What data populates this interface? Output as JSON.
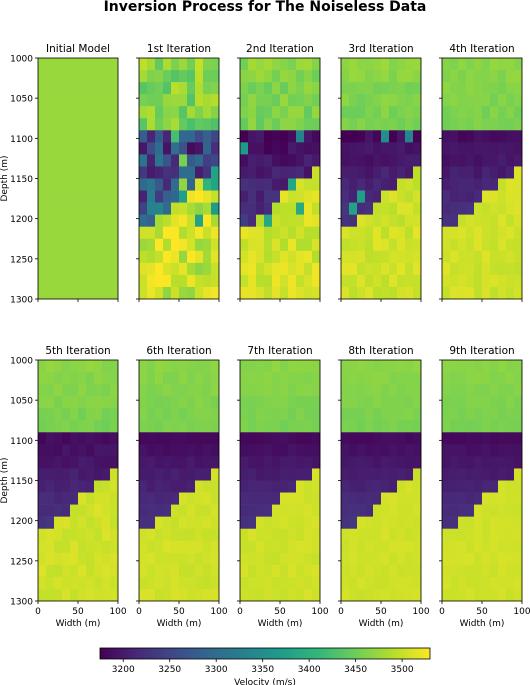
{
  "title": "Inversion Process for The Noiseless Data",
  "colors": {
    "viridis": [
      "#440154",
      "#482878",
      "#3e4989",
      "#31688e",
      "#26828e",
      "#1f9e89",
      "#35b779",
      "#6ece58",
      "#b5de2b",
      "#fde725"
    ]
  },
  "chart_data": {
    "type": "heatmap",
    "rows": 20,
    "cols": 10,
    "x_label": "Width (m)",
    "y_label": "Depth (m)",
    "x_range": [
      0,
      100
    ],
    "y_range": [
      1000,
      1300
    ],
    "y_inverted": true,
    "x_ticks": [
      "0",
      "50",
      "100"
    ],
    "y_ticks": [
      "1000",
      "1050",
      "1100",
      "1150",
      "1200",
      "1250",
      "1300"
    ],
    "colorbar": {
      "label": "Velocity (m/s)",
      "range": [
        3175,
        3530
      ],
      "ticks": [
        "3200",
        "3250",
        "3300",
        "3350",
        "3400",
        "3450",
        "3500"
      ],
      "placement": "bottom"
    },
    "true_model": {
      "upper_layer_depth_range": [
        1000,
        1100
      ],
      "upper_layer_velocity": 3455,
      "low_velocity_wedge_top": 1100,
      "low_velocity_wedge_base_at_x0": 1200,
      "low_velocity_wedge_base_at_x100": 1100,
      "wedge_velocity": 3185,
      "lower_layer_velocity": 3505
    },
    "panels": [
      {
        "title": "Initial Model",
        "stage": 0
      },
      {
        "title": "1st Iteration",
        "stage": 1
      },
      {
        "title": "2nd Iteration",
        "stage": 2
      },
      {
        "title": "3rd Iteration",
        "stage": 3
      },
      {
        "title": "4th Iteration",
        "stage": 4
      },
      {
        "title": "5th Iteration",
        "stage": 5
      },
      {
        "title": "6th Iteration",
        "stage": 6
      },
      {
        "title": "7th Iteration",
        "stage": 7
      },
      {
        "title": "8th Iteration",
        "stage": 8
      },
      {
        "title": "9th Iteration",
        "stage": 9
      }
    ],
    "initial_velocity": 3475
  }
}
